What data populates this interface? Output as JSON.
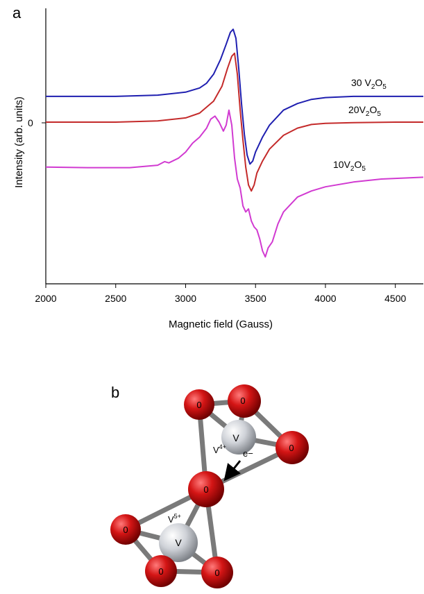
{
  "panel_a": {
    "label": "a",
    "chart_data": {
      "type": "line",
      "xlabel": "Magnetic field (Gauss)",
      "ylabel": "Intensity (arb. units)",
      "xlim": [
        2000,
        4700
      ],
      "xticks": [
        2000,
        2500,
        3000,
        3500,
        4000,
        4500
      ],
      "y_zero_label": "0",
      "grid": false,
      "series": [
        {
          "name": "30 V2O5",
          "label_parts": [
            "30 V",
            "2",
            "O",
            "5"
          ],
          "color": "#1f1fb0",
          "x": [
            2000,
            2500,
            2800,
            3000,
            3100,
            3150,
            3200,
            3250,
            3290,
            3320,
            3340,
            3360,
            3380,
            3400,
            3420,
            3440,
            3460,
            3480,
            3500,
            3550,
            3600,
            3700,
            3800,
            3900,
            4000,
            4200,
            4500,
            4700
          ],
          "y": [
            0.43,
            0.43,
            0.45,
            0.5,
            0.57,
            0.65,
            0.8,
            1.05,
            1.3,
            1.5,
            1.55,
            1.4,
            0.9,
            0.3,
            -0.2,
            -0.55,
            -0.7,
            -0.65,
            -0.5,
            -0.25,
            -0.05,
            0.2,
            0.31,
            0.38,
            0.41,
            0.43,
            0.43,
            0.43
          ]
        },
        {
          "name": "20V2O5",
          "label_parts": [
            "20V",
            "2",
            "O",
            "5"
          ],
          "color": "#c42a2a",
          "x": [
            2000,
            2500,
            2800,
            3000,
            3100,
            3200,
            3260,
            3300,
            3330,
            3350,
            3370,
            3390,
            3410,
            3430,
            3450,
            3470,
            3490,
            3510,
            3550,
            3600,
            3700,
            3800,
            3900,
            4000,
            4200,
            4500,
            4700
          ],
          "y": [
            0.0,
            0.0,
            0.02,
            0.07,
            0.15,
            0.35,
            0.6,
            0.9,
            1.1,
            1.15,
            0.8,
            0.2,
            -0.3,
            -0.75,
            -1.05,
            -1.15,
            -1.05,
            -0.85,
            -0.65,
            -0.45,
            -0.22,
            -0.1,
            -0.04,
            -0.02,
            -0.01,
            0.0,
            0.0
          ]
        },
        {
          "name": "10V2O5",
          "label_parts": [
            "10V",
            "2",
            "O",
            "5"
          ],
          "color": "#d13ad1",
          "x": [
            2000,
            2300,
            2600,
            2800,
            2850,
            2880,
            2950,
            3000,
            3050,
            3100,
            3150,
            3180,
            3210,
            3240,
            3270,
            3290,
            3310,
            3330,
            3350,
            3370,
            3390,
            3410,
            3430,
            3450,
            3470,
            3490,
            3510,
            3530,
            3550,
            3570,
            3590,
            3620,
            3660,
            3700,
            3800,
            3900,
            4000,
            4200,
            4400,
            4600,
            4700
          ],
          "y": [
            -0.75,
            -0.76,
            -0.76,
            -0.72,
            -0.66,
            -0.68,
            -0.6,
            -0.5,
            -0.35,
            -0.25,
            -0.1,
            0.05,
            0.1,
            0.0,
            -0.15,
            -0.05,
            0.2,
            -0.05,
            -0.6,
            -0.95,
            -1.1,
            -1.4,
            -1.5,
            -1.45,
            -1.65,
            -1.75,
            -1.8,
            -1.95,
            -2.15,
            -2.25,
            -2.1,
            -2.0,
            -1.7,
            -1.5,
            -1.25,
            -1.15,
            -1.08,
            -1.0,
            -0.95,
            -0.93,
            -0.92
          ]
        }
      ],
      "ylim": [
        -2.7,
        1.9
      ]
    }
  },
  "panel_b": {
    "label": "b",
    "atoms": {
      "oxygen": [
        "0",
        "0",
        "0",
        "0",
        "0",
        "0",
        "0"
      ],
      "vanadium": [
        "V",
        "V"
      ],
      "v4_label": {
        "base": "V",
        "sup": "4+"
      },
      "v5_label": {
        "base": "V",
        "sup": "5+"
      },
      "electron_label": "e−"
    },
    "colors": {
      "oxygen": "#cc1111",
      "vanadium": "#c8c8c8",
      "bond": "#7a7a7a"
    }
  }
}
